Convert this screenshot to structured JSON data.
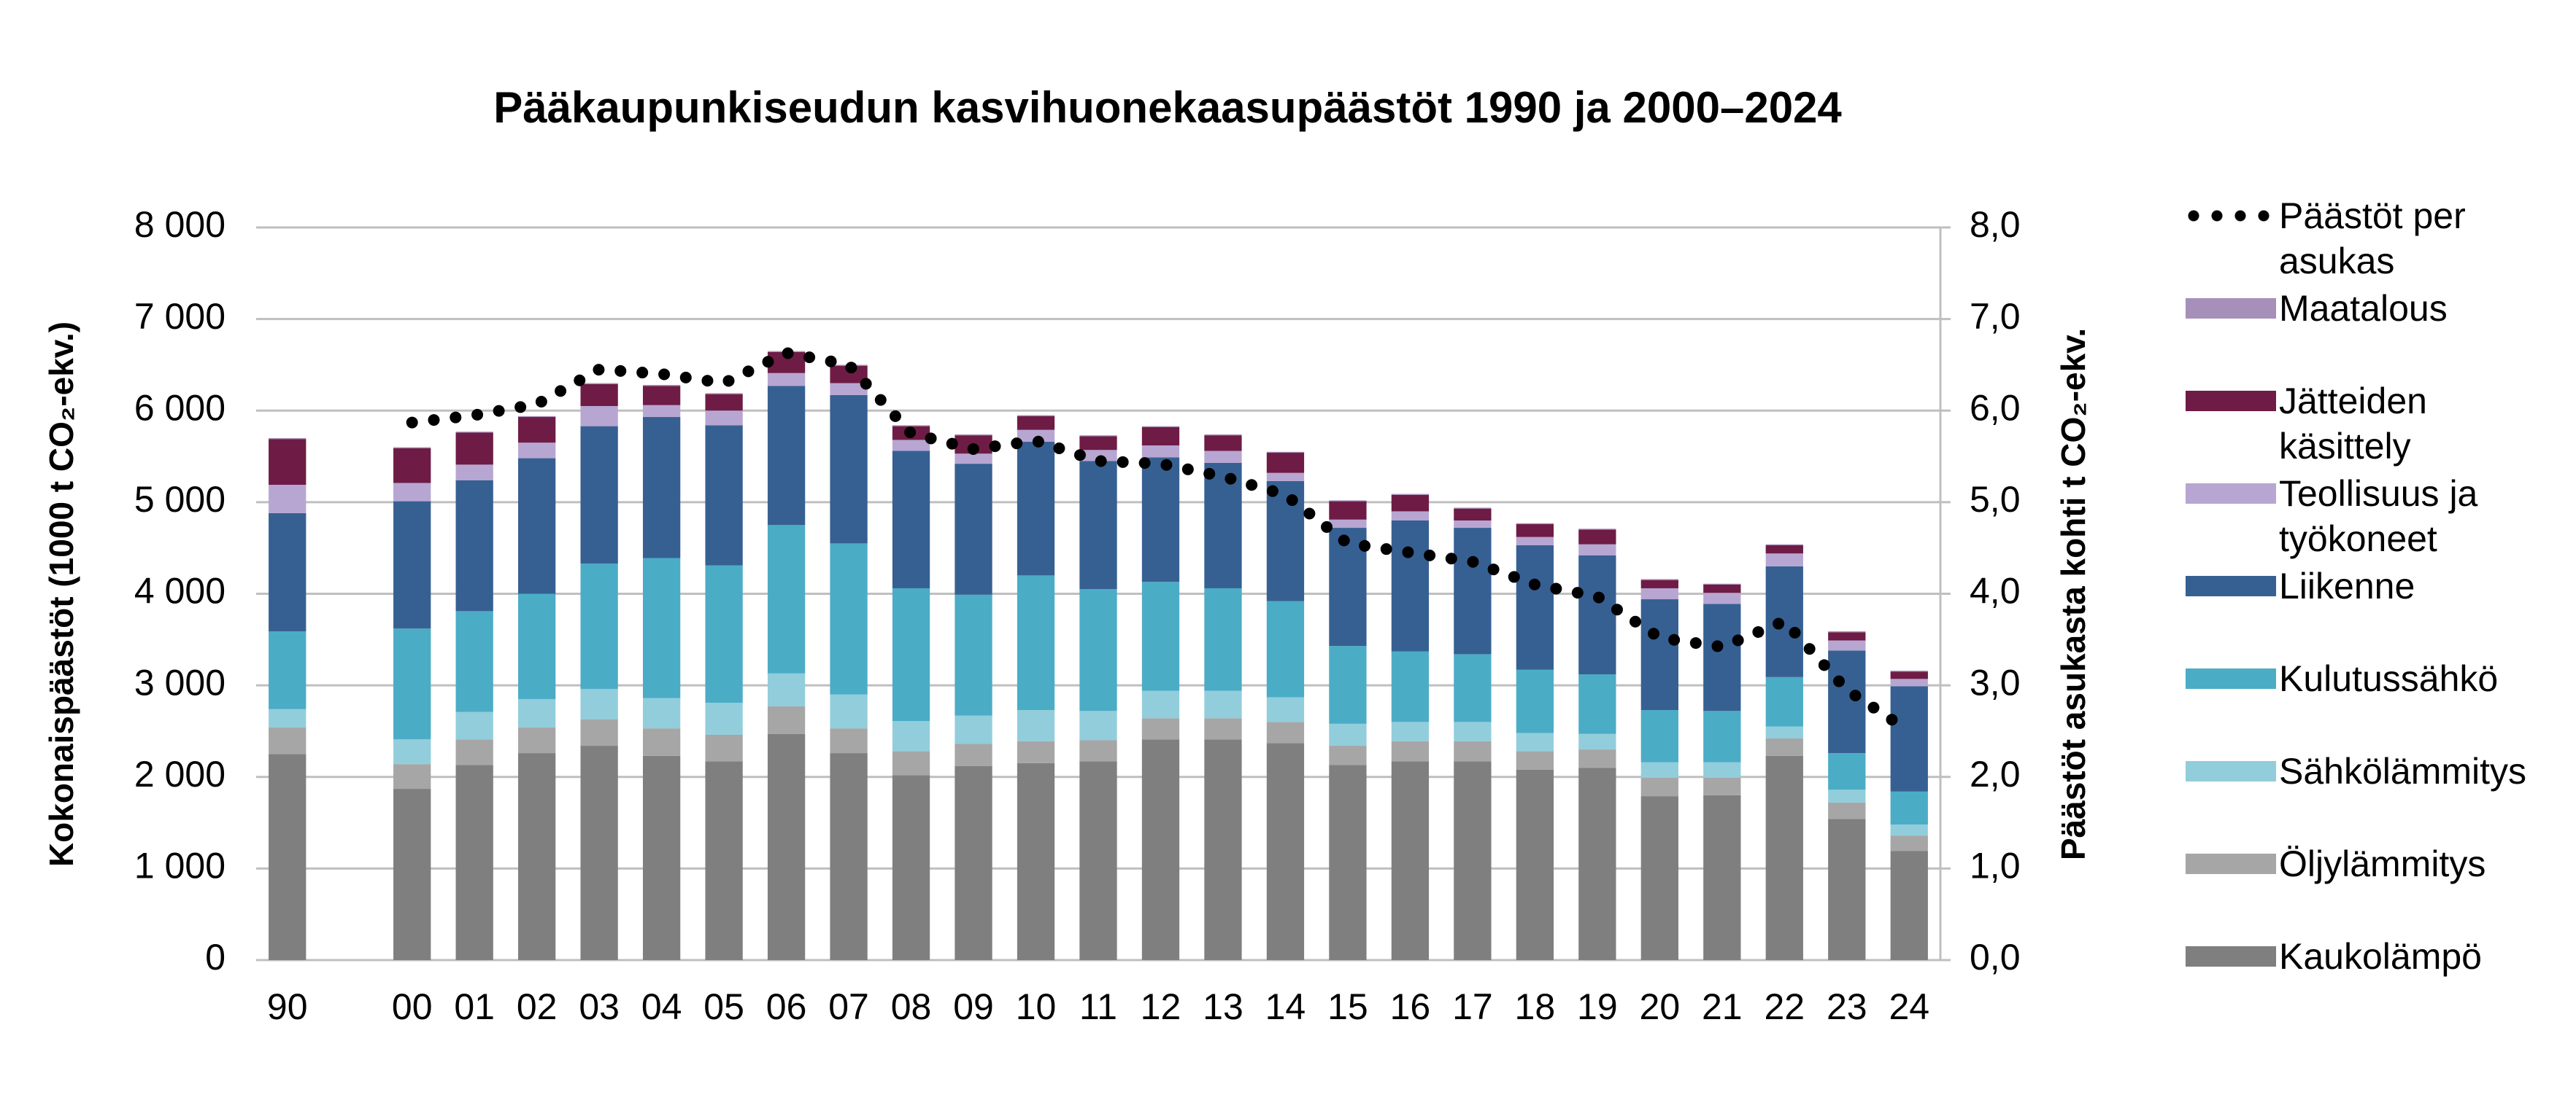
{
  "chart_data": {
    "type": "bar",
    "stacked": true,
    "title": "Pääkaupunkiseudun kasvihuonekaasupäästöt 1990 ja 2000–2024",
    "y_label": "Kokonaispäästöt (1000 t CO₂-ekv.)",
    "y2_label": "Päästöt asukasta kohti t CO₂-ekv.",
    "categories": [
      "90",
      null,
      "00",
      "01",
      "02",
      "03",
      "04",
      "05",
      "06",
      "07",
      "08",
      "09",
      "10",
      "11",
      "12",
      "13",
      "14",
      "15",
      "16",
      "17",
      "18",
      "19",
      "20",
      "21",
      "22",
      "23",
      "24"
    ],
    "series": [
      {
        "name": "Kaukolämpö",
        "color": "#7f7f7f",
        "values": [
          2250,
          null,
          1870,
          2130,
          2260,
          2340,
          2230,
          2170,
          2470,
          2260,
          2020,
          2120,
          2150,
          2170,
          2410,
          2410,
          2370,
          2130,
          2170,
          2170,
          2080,
          2100,
          1790,
          1800,
          2230,
          1540,
          1190
        ]
      },
      {
        "name": "Öljylämmitys",
        "color": "#a6a6a6",
        "values": [
          290,
          null,
          270,
          280,
          280,
          290,
          300,
          290,
          300,
          270,
          260,
          240,
          240,
          230,
          230,
          230,
          230,
          210,
          220,
          220,
          200,
          200,
          200,
          190,
          190,
          180,
          170
        ]
      },
      {
        "name": "Sähkölämmitys",
        "color": "#92cddc",
        "values": [
          200,
          null,
          270,
          300,
          310,
          330,
          330,
          350,
          360,
          370,
          330,
          310,
          340,
          320,
          300,
          300,
          270,
          240,
          210,
          210,
          200,
          170,
          170,
          170,
          130,
          140,
          120
        ]
      },
      {
        "name": "Kulutussähkö",
        "color": "#4bacc6",
        "values": [
          850,
          null,
          1210,
          1100,
          1150,
          1370,
          1530,
          1500,
          1620,
          1650,
          1450,
          1320,
          1470,
          1330,
          1190,
          1120,
          1050,
          850,
          770,
          740,
          690,
          650,
          570,
          560,
          540,
          400,
          360
        ]
      },
      {
        "name": "Liikenne",
        "color": "#366092",
        "values": [
          1290,
          null,
          1390,
          1430,
          1480,
          1500,
          1540,
          1530,
          1520,
          1620,
          1500,
          1430,
          1460,
          1400,
          1360,
          1370,
          1310,
          1290,
          1430,
          1380,
          1360,
          1300,
          1210,
          1170,
          1210,
          1120,
          1150
        ]
      },
      {
        "name": "Teollisuus ja työkoneet",
        "color": "#b7a6d2",
        "values": [
          310,
          null,
          200,
          170,
          170,
          220,
          130,
          160,
          140,
          130,
          120,
          110,
          130,
          120,
          130,
          130,
          90,
          90,
          100,
          80,
          90,
          120,
          120,
          120,
          140,
          110,
          80
        ]
      },
      {
        "name": "Jätteiden käsittely",
        "color": "#6e1c45",
        "values": [
          500,
          null,
          380,
          350,
          280,
          240,
          210,
          180,
          230,
          190,
          150,
          200,
          150,
          150,
          200,
          170,
          220,
          200,
          180,
          130,
          140,
          160,
          90,
          90,
          90,
          90,
          80
        ]
      },
      {
        "name": "Maatalous",
        "color": "#a68fb8",
        "values": [
          10,
          null,
          10,
          10,
          10,
          10,
          10,
          10,
          10,
          10,
          10,
          10,
          10,
          10,
          10,
          10,
          10,
          10,
          10,
          10,
          10,
          10,
          10,
          10,
          10,
          10,
          10
        ]
      },
      {
        "name": "Päästöt per asukas",
        "color": "#000000",
        "axis": "y2",
        "line_style": "dotted",
        "values": [
          null,
          null,
          5.87,
          5.95,
          6.07,
          6.45,
          6.4,
          6.3,
          6.63,
          6.5,
          5.75,
          5.58,
          5.67,
          5.45,
          5.42,
          5.28,
          5.08,
          4.55,
          4.45,
          4.35,
          4.1,
          3.97,
          3.52,
          3.42,
          3.7,
          2.95,
          2.5
        ]
      }
    ],
    "ylim": [
      0,
      8000
    ],
    "yticks": [
      0,
      {
        "value": 1000,
        "label": "1 000"
      },
      {
        "value": 2000,
        "label": "2 000"
      },
      {
        "value": 3000,
        "label": "3 000"
      },
      {
        "value": 4000,
        "label": "4 000"
      },
      {
        "value": 5000,
        "label": "5 000"
      },
      {
        "value": 6000,
        "label": "6 000"
      },
      {
        "value": 7000,
        "label": "7 000"
      },
      {
        "value": 8000,
        "label": "8 000"
      }
    ],
    "y2lim": [
      0,
      8
    ],
    "y2ticks": [
      {
        "value": 0,
        "label": "0,0"
      },
      {
        "value": 1,
        "label": "1,0"
      },
      {
        "value": 2,
        "label": "2,0"
      },
      {
        "value": 3,
        "label": "3,0"
      },
      {
        "value": 4,
        "label": "4,0"
      },
      {
        "value": 5,
        "label": "5,0"
      },
      {
        "value": 6,
        "label": "6,0"
      },
      {
        "value": 7,
        "label": "7,0"
      },
      {
        "value": 8,
        "label": "8,0"
      }
    ],
    "grid": true,
    "legend": "right"
  }
}
